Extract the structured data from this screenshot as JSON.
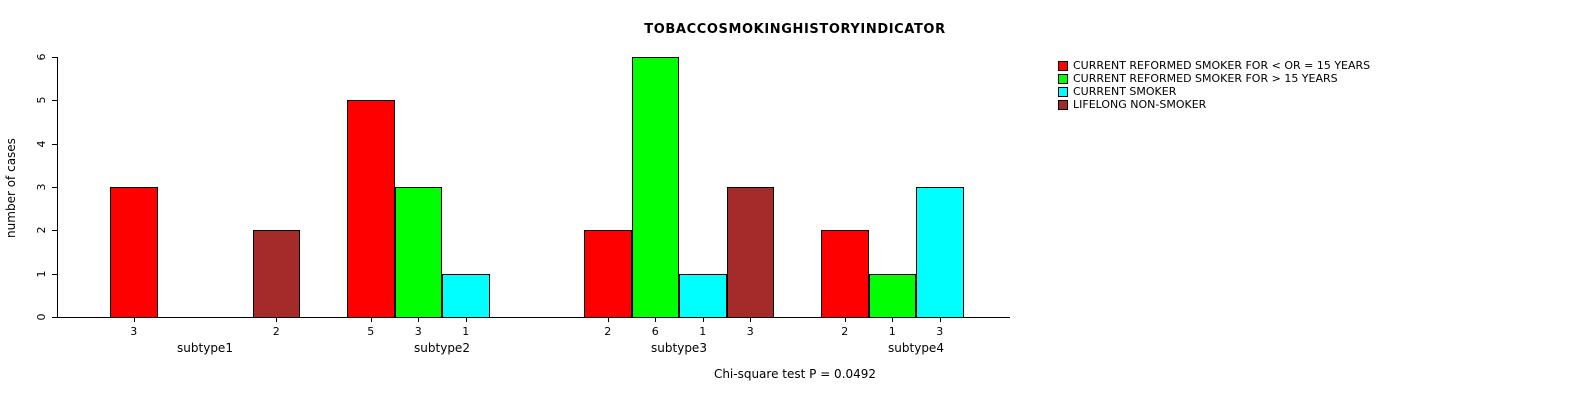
{
  "title": "TOBACCOSMOKINGHISTORYINDICATOR",
  "footer_annotation": "Chi-square test P = 0.0492",
  "y_axis_label": "number of cases",
  "chart_data": {
    "type": "bar",
    "title": "TOBACCOSMOKINGHISTORYINDICATOR",
    "xlabel": "",
    "ylabel": "number of cases",
    "ylim": [
      0,
      6
    ],
    "yticks": [
      0,
      1,
      2,
      3,
      4,
      5,
      6
    ],
    "grid": false,
    "legend_position": "top-right",
    "categories": [
      "subtype1",
      "subtype2",
      "subtype3",
      "subtype4"
    ],
    "series": [
      {
        "name": "CURRENT REFORMED SMOKER FOR < OR = 15 YEARS",
        "color": "#FF0000",
        "values": [
          3,
          5,
          2,
          2
        ]
      },
      {
        "name": "CURRENT REFORMED SMOKER FOR > 15 YEARS",
        "color": "#00FF00",
        "values": [
          0,
          3,
          6,
          1
        ]
      },
      {
        "name": "CURRENT SMOKER",
        "color": "#00FFFF",
        "values": [
          0,
          1,
          1,
          3
        ]
      },
      {
        "name": "LIFELONG NON-SMOKER",
        "color": "#A52A2A",
        "values": [
          2,
          0,
          3,
          0
        ]
      }
    ],
    "bar_value_labels_shown_for_zero": false,
    "annotation": "Chi-square test P = 0.0492"
  }
}
